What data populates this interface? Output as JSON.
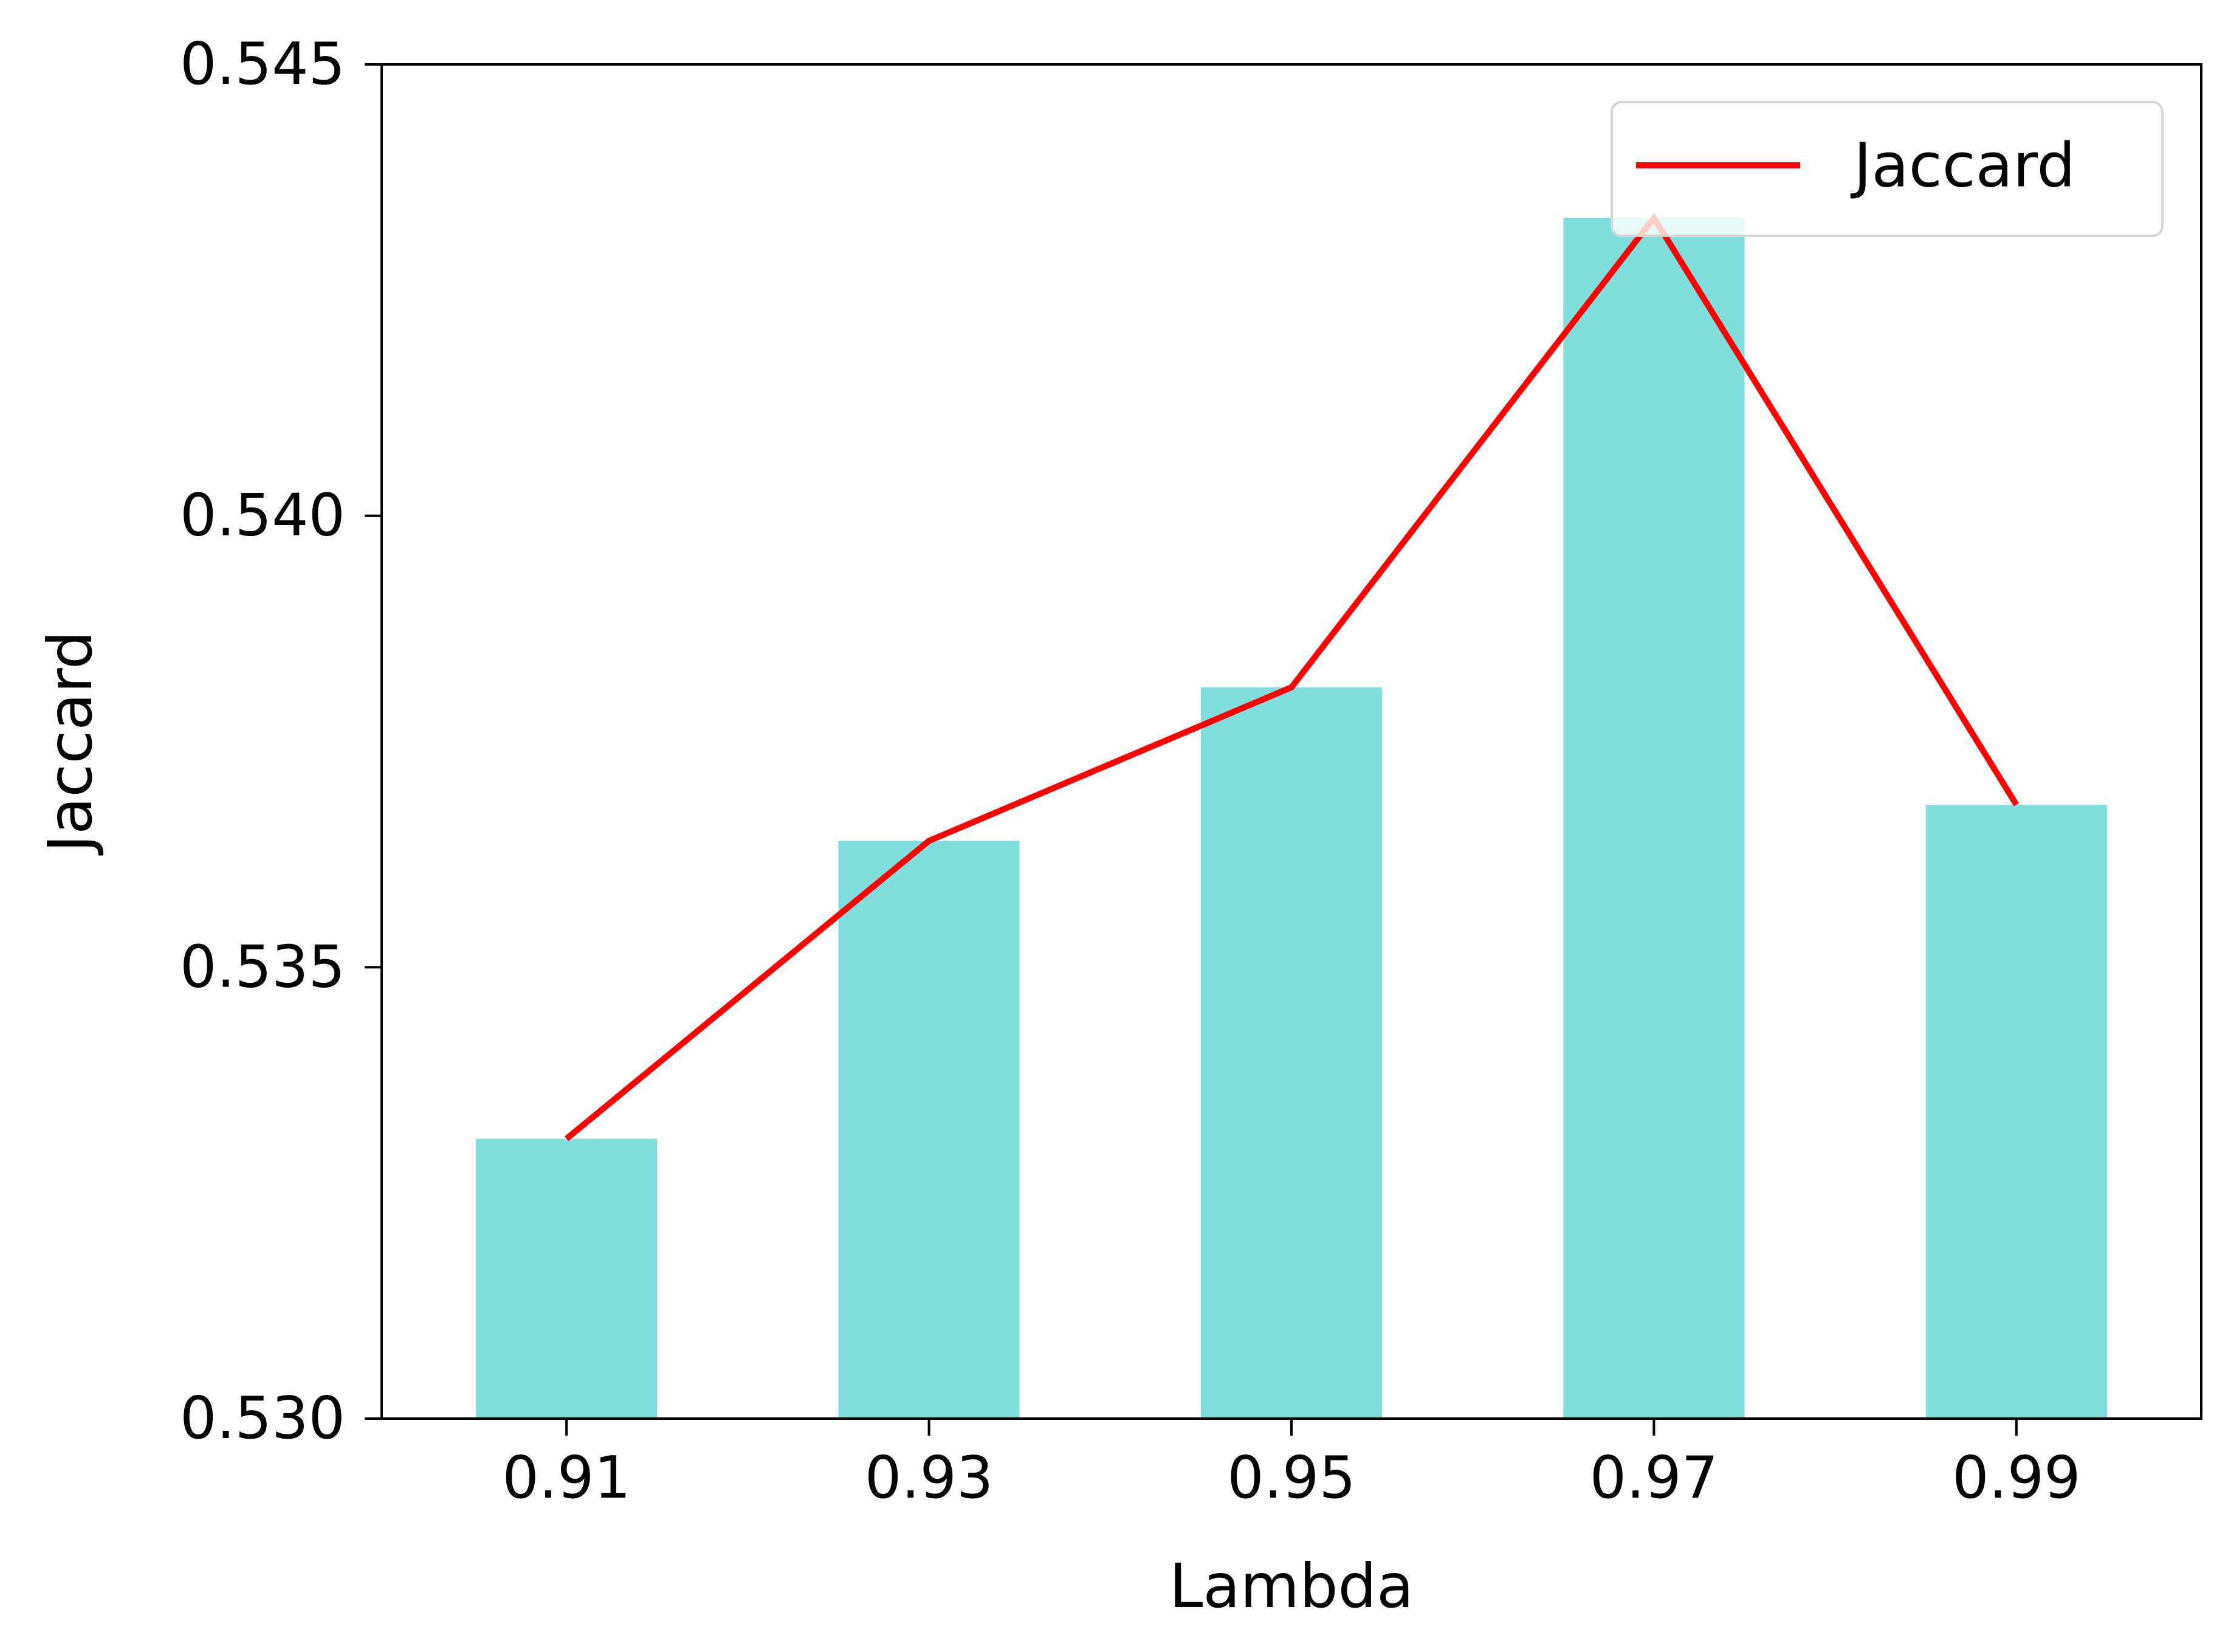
{
  "chart_data": {
    "type": "bar",
    "title": "",
    "xlabel": "Lambda",
    "ylabel": "Jaccard",
    "categories": [
      "0.91",
      "0.93",
      "0.95",
      "0.97",
      "0.99"
    ],
    "series": [
      {
        "type": "bar",
        "values": [
          0.5331,
          0.5364,
          0.5381,
          0.5433,
          0.5368
        ]
      },
      {
        "type": "line",
        "name": "Jaccard",
        "values": [
          0.5331,
          0.5364,
          0.5381,
          0.5433,
          0.5368
        ]
      }
    ],
    "ylim": [
      0.53,
      0.545
    ],
    "yticks": [
      "0.530",
      "0.535",
      "0.540",
      "0.545"
    ],
    "ytick_values": [
      0.53,
      0.535,
      0.54,
      0.545
    ],
    "grid": false,
    "legend": {
      "position": "top-right",
      "entries": [
        "Jaccard"
      ]
    },
    "colors": {
      "bar": "#80dfdd",
      "line": "#ff0000"
    }
  }
}
